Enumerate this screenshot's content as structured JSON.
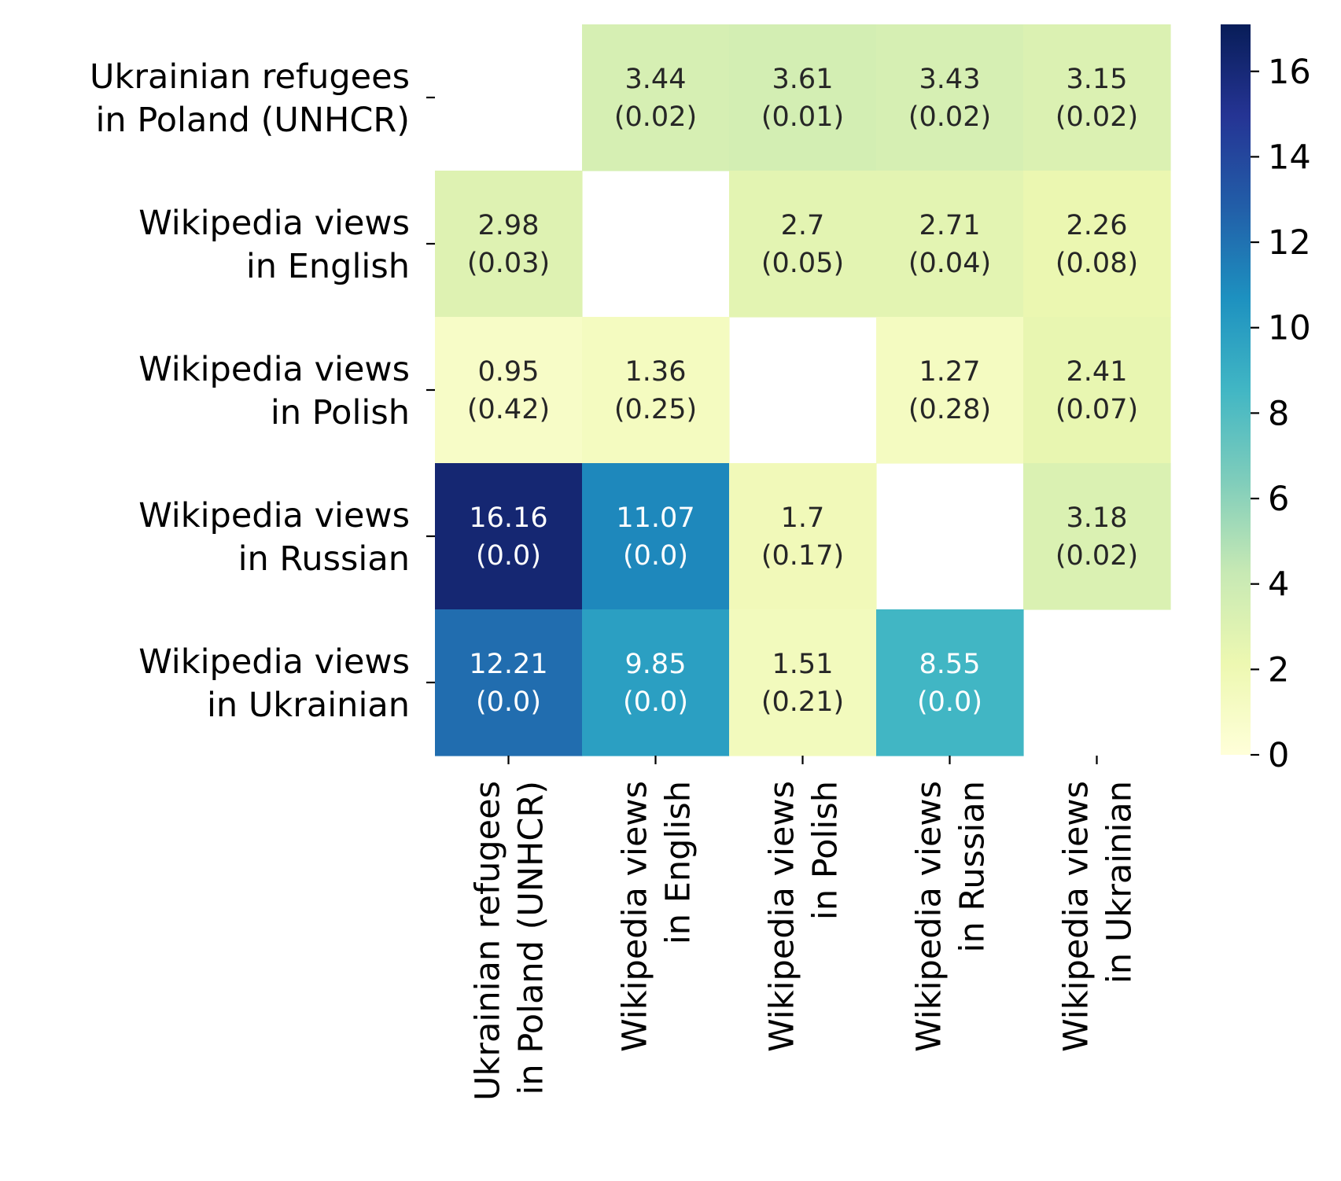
{
  "chart_data": {
    "type": "heatmap",
    "rows": [
      [
        "Ukrainian refugees",
        "in Poland (UNHCR)"
      ],
      [
        "Wikipedia views",
        "in English"
      ],
      [
        "Wikipedia views",
        "in Polish"
      ],
      [
        "Wikipedia views",
        "in Russian"
      ],
      [
        "Wikipedia views",
        "in Ukrainian"
      ]
    ],
    "columns": [
      [
        "Ukrainian refugees",
        "in Poland (UNHCR)"
      ],
      [
        "Wikipedia views",
        "in English"
      ],
      [
        "Wikipedia views",
        "in Polish"
      ],
      [
        "Wikipedia views",
        "in Russian"
      ],
      [
        "Wikipedia views",
        "in Ukrainian"
      ]
    ],
    "values": [
      [
        null,
        3.44,
        3.61,
        3.43,
        3.15
      ],
      [
        2.98,
        null,
        2.7,
        2.71,
        2.26
      ],
      [
        0.95,
        1.36,
        null,
        1.27,
        2.41
      ],
      [
        16.16,
        11.07,
        1.7,
        null,
        3.18
      ],
      [
        12.21,
        9.85,
        1.51,
        8.55,
        null
      ]
    ],
    "value_labels": [
      [
        null,
        "3.44",
        "3.61",
        "3.43",
        "3.15"
      ],
      [
        "2.98",
        null,
        "2.7",
        "2.71",
        "2.26"
      ],
      [
        "0.95",
        "1.36",
        null,
        "1.27",
        "2.41"
      ],
      [
        "16.16",
        "11.07",
        "1.7",
        null,
        "3.18"
      ],
      [
        "12.21",
        "9.85",
        "1.51",
        "8.55",
        null
      ]
    ],
    "p_value_labels": [
      [
        null,
        "(0.02)",
        "(0.01)",
        "(0.02)",
        "(0.02)"
      ],
      [
        "(0.03)",
        null,
        "(0.05)",
        "(0.04)",
        "(0.08)"
      ],
      [
        "(0.42)",
        "(0.25)",
        null,
        "(0.28)",
        "(0.07)"
      ],
      [
        "(0.0)",
        "(0.0)",
        "(0.17)",
        null,
        "(0.02)"
      ],
      [
        "(0.0)",
        "(0.0)",
        "(0.21)",
        "(0.0)",
        null
      ]
    ],
    "colorbar": {
      "min": 0,
      "max": 17.1,
      "ticks": [
        "0",
        "2",
        "4",
        "6",
        "8",
        "10",
        "12",
        "14",
        "16"
      ],
      "colormap": "YlGnBu",
      "colormap_stops": [
        "#ffffd9",
        "#edf8b1",
        "#c7e9b4",
        "#7fcdbb",
        "#41b6c4",
        "#1d91c0",
        "#225ea8",
        "#253494",
        "#081d58"
      ]
    },
    "annotation_color_dark": "#262626",
    "annotation_color_light": "#ffffff",
    "title": "",
    "xlabel": "",
    "ylabel": ""
  }
}
